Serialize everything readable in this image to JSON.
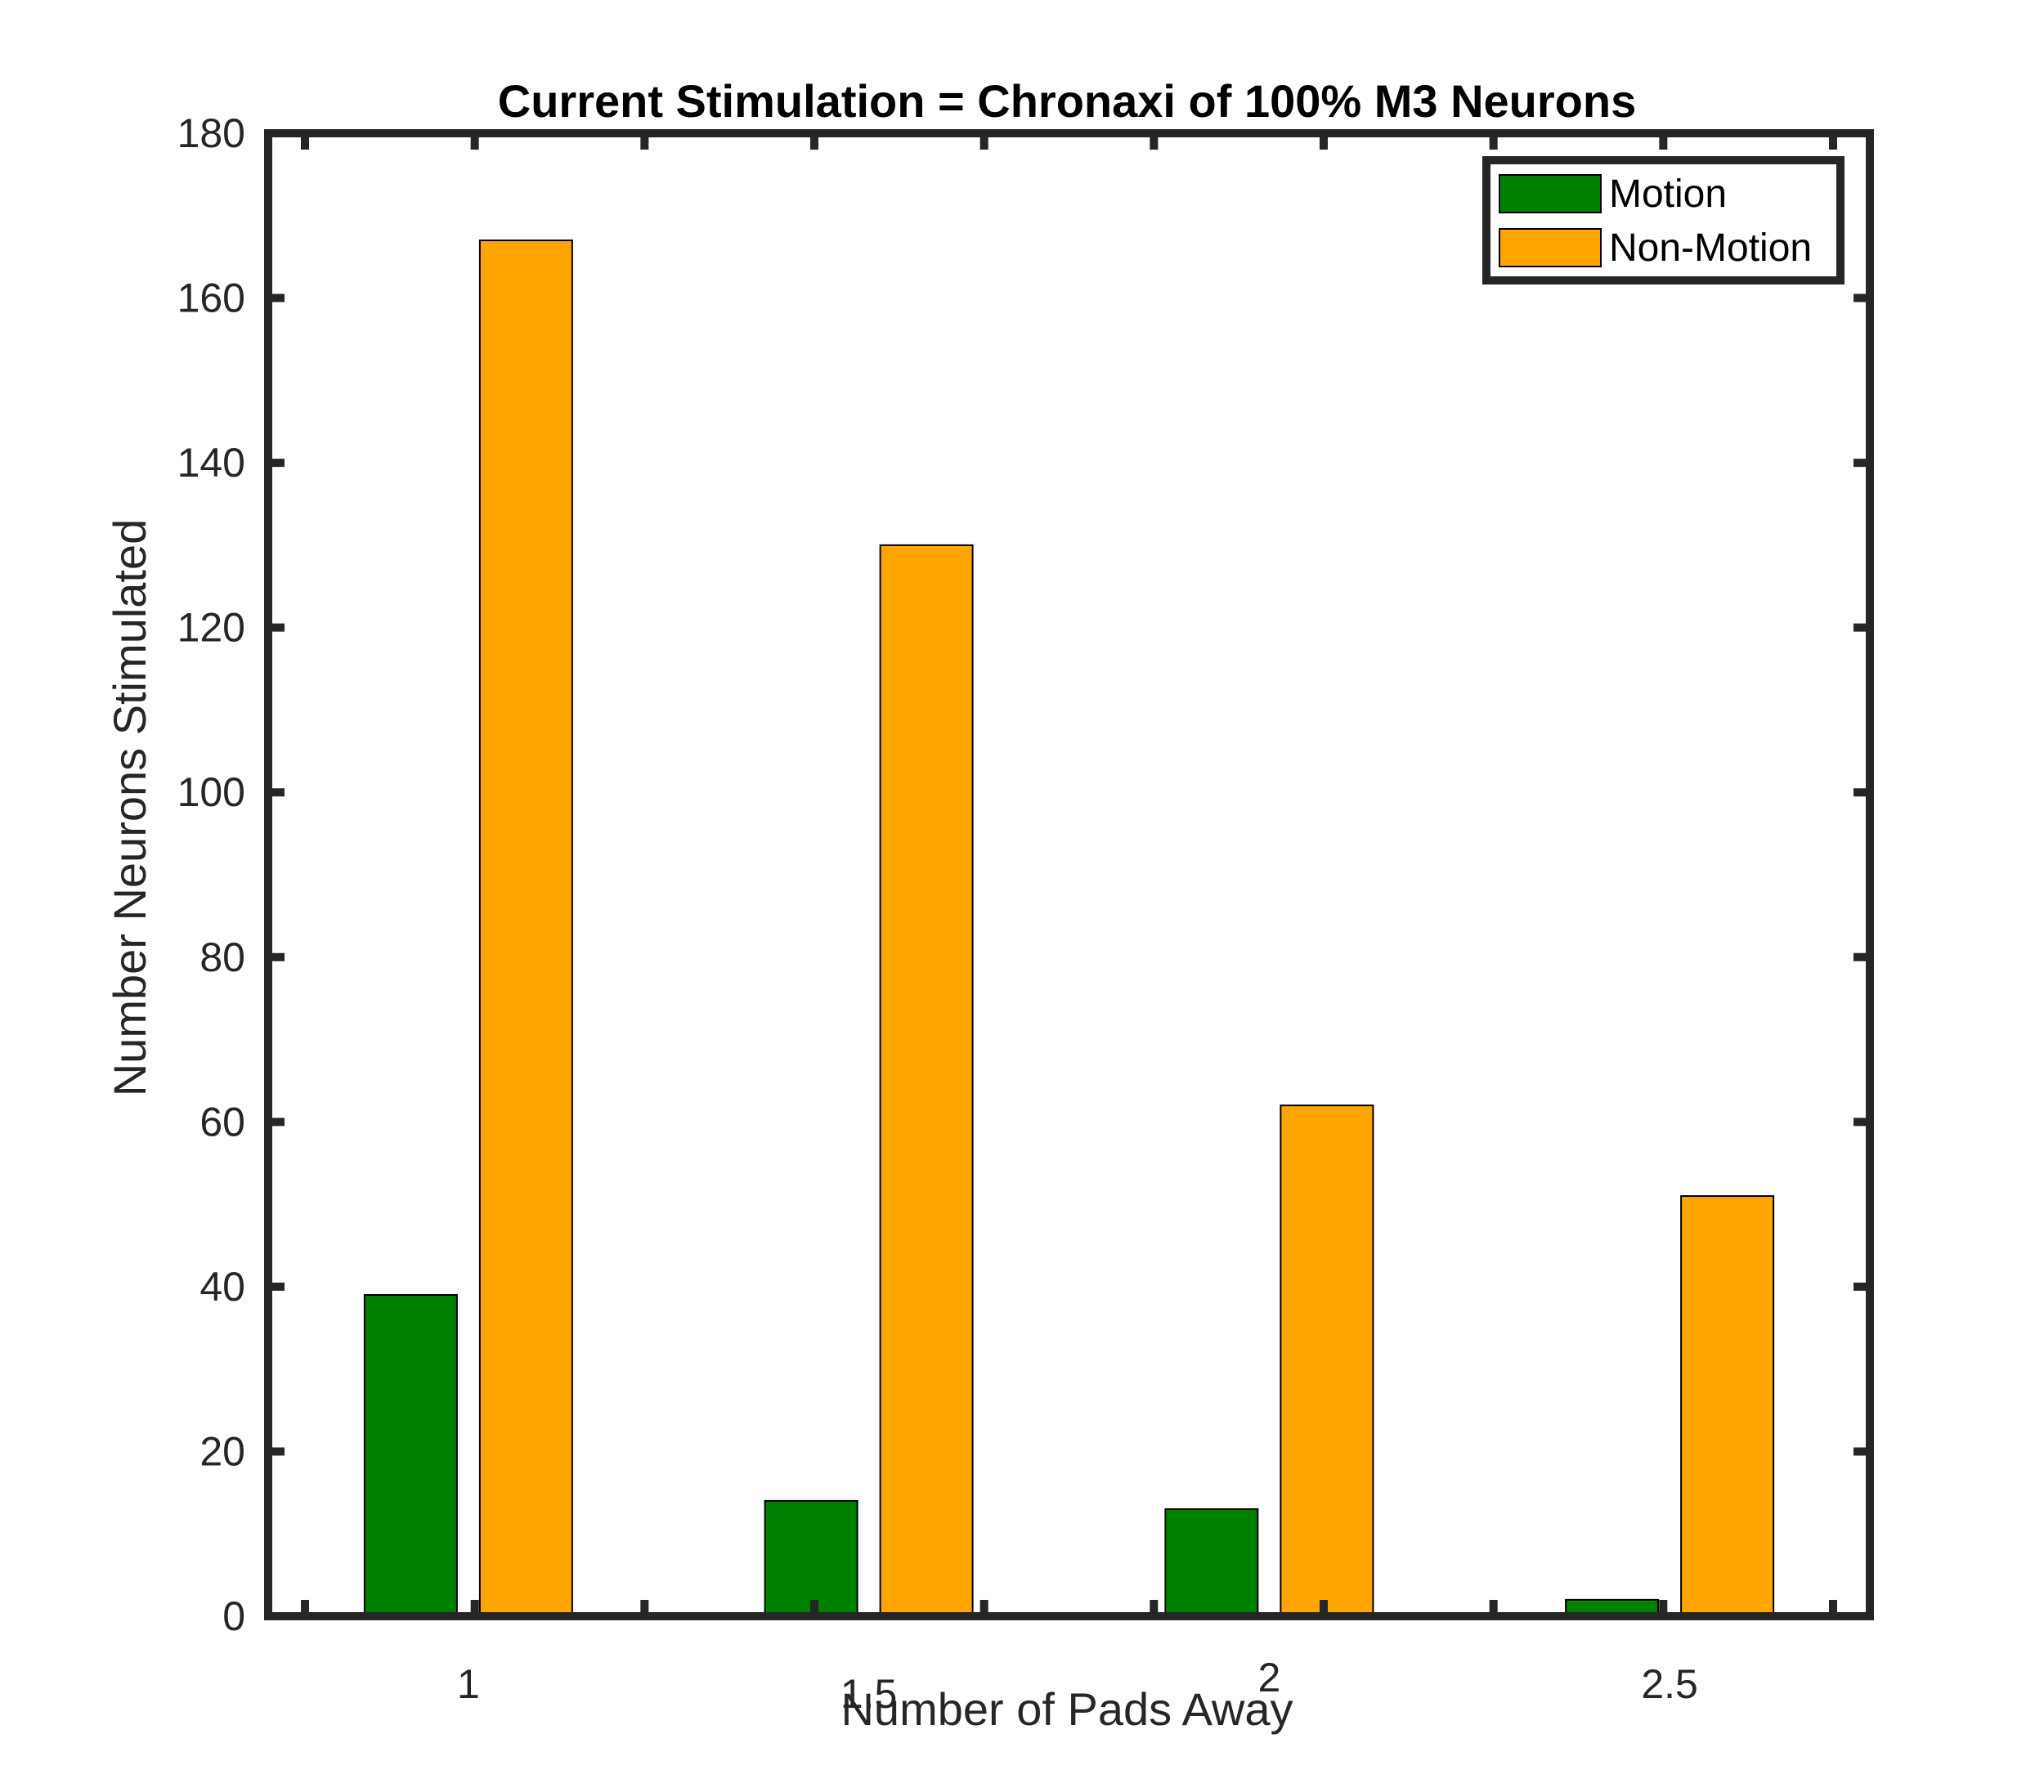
{
  "chart_data": {
    "type": "bar",
    "title": "Current Stimulation = Chronaxi of 100% M3 Neurons",
    "xlabel": "Number of Pads Away",
    "ylabel": "Number Neurons Stimulated",
    "categories": [
      "1",
      "1.5",
      "2",
      "2.5"
    ],
    "series": [
      {
        "name": "Motion",
        "values": [
          39,
          14,
          13,
          2
        ]
      },
      {
        "name": "Non-Motion",
        "values": [
          167,
          130,
          62,
          51
        ]
      }
    ],
    "ylim": [
      0,
      180
    ],
    "yticks": [
      "0",
      "20",
      "40",
      "60",
      "80",
      "100",
      "120",
      "140",
      "160",
      "180"
    ],
    "grid": false,
    "legend_position": "top-right"
  },
  "colors": {
    "Motion": "#008000",
    "Non-Motion": "#FFA500",
    "axis": "#262626"
  }
}
